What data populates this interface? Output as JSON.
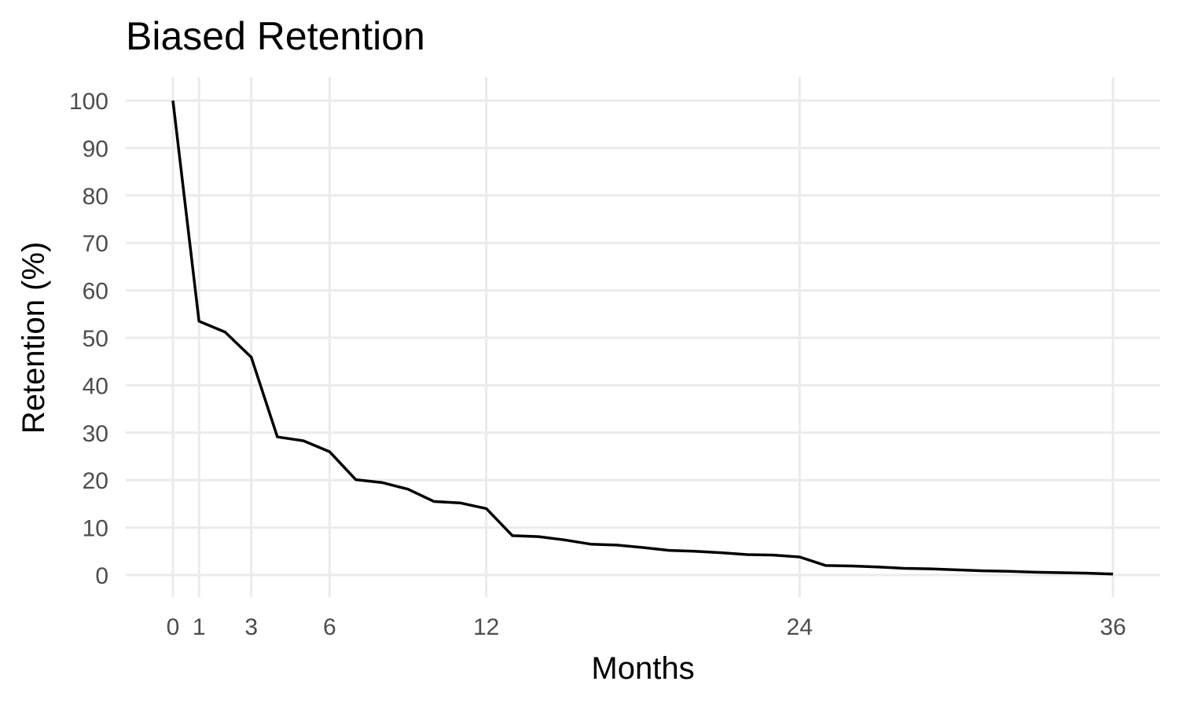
{
  "chart_data": {
    "type": "line",
    "title": "Biased Retention",
    "xlabel": "Months",
    "ylabel": "Retention (%)",
    "xlim": [
      0,
      36
    ],
    "ylim": [
      0,
      100
    ],
    "x_ticks": [
      0,
      1,
      3,
      6,
      12,
      24,
      36
    ],
    "y_ticks": [
      0,
      10,
      20,
      30,
      40,
      50,
      60,
      70,
      80,
      90,
      100
    ],
    "grid": true,
    "line_color": "#000000",
    "grid_color": "#ebebeb",
    "series": [
      {
        "x": [
          0,
          1,
          2,
          3,
          4,
          5,
          6,
          7,
          8,
          9,
          10,
          11,
          12,
          13,
          14,
          15,
          16,
          17,
          18,
          19,
          20,
          21,
          22,
          23,
          24,
          25,
          26,
          27,
          28,
          29,
          30,
          31,
          32,
          33,
          34,
          35,
          36
        ],
        "values": [
          100,
          53.5,
          51.2,
          45.9,
          29.1,
          28.3,
          26.0,
          20.1,
          19.5,
          18.1,
          15.5,
          15.2,
          14.0,
          8.3,
          8.1,
          7.4,
          6.5,
          6.3,
          5.8,
          5.2,
          5.0,
          4.7,
          4.3,
          4.2,
          3.8,
          2.0,
          1.9,
          1.7,
          1.4,
          1.3,
          1.1,
          0.9,
          0.8,
          0.6,
          0.5,
          0.4,
          0.2
        ]
      }
    ]
  }
}
